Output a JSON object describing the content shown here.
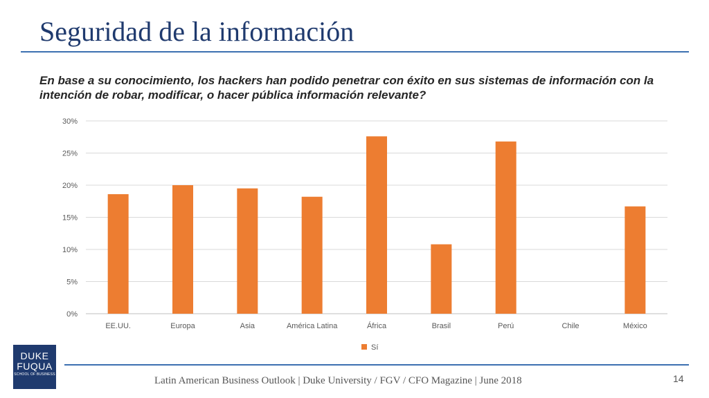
{
  "slide": {
    "title": "Seguridad de la información",
    "question": "En base a su conocimiento, los hackers han podido penetrar con éxito en sus sistemas de información con la intención de robar, modificar, o hacer pública información relevante?",
    "footer": "Latin American Business Outlook | Duke University / FGV / CFO Magazine | June 2018",
    "page_number": "14",
    "logo": {
      "line1": "DUKE",
      "line2": "FUQUA",
      "line3": "SCHOOL OF BUSINESS"
    }
  },
  "colors": {
    "accent": "#1f3a6e",
    "rule": "#3b6fb0",
    "bar": "#ed7d31"
  },
  "chart_data": {
    "type": "bar",
    "categories": [
      "EE.UU.",
      "Europa",
      "Asia",
      "América Latina",
      "África",
      "Brasil",
      "Perú",
      "Chile",
      "México"
    ],
    "series": [
      {
        "name": "Sí",
        "values": [
          18.6,
          20.0,
          19.5,
          18.2,
          27.6,
          10.8,
          26.8,
          0,
          16.7
        ]
      }
    ],
    "yticks": [
      "0%",
      "5%",
      "10%",
      "15%",
      "20%",
      "25%",
      "30%"
    ],
    "ylim": [
      0,
      30
    ],
    "grid": true,
    "legend": "bottom"
  }
}
